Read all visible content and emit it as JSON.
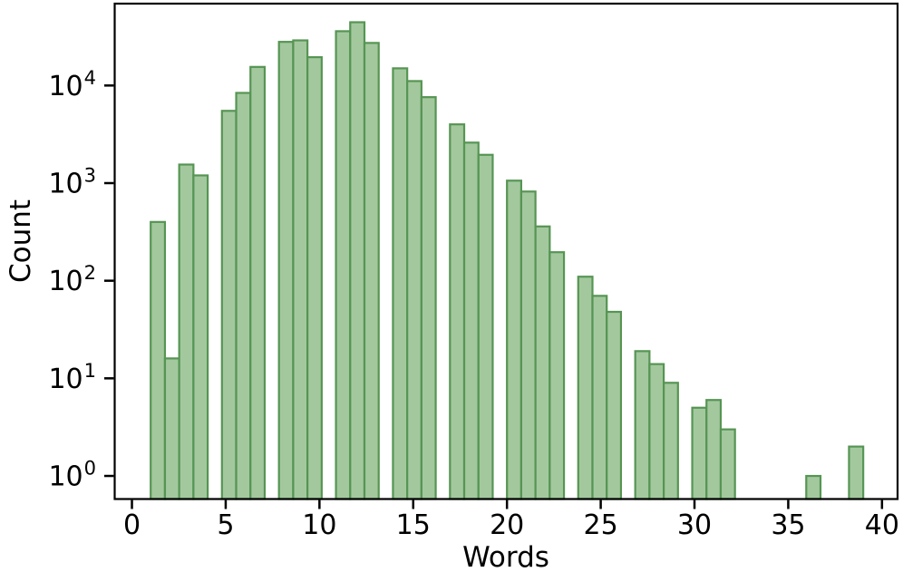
{
  "figure": {
    "background": "#ffffff"
  },
  "chart_data": {
    "type": "bar",
    "subtype": "histogram",
    "title": "",
    "xlabel": "Words",
    "ylabel": "Count",
    "x_ticks": [
      0,
      5,
      10,
      15,
      20,
      25,
      30,
      35,
      40
    ],
    "y_tick_base": "10",
    "y_tick_exponents": [
      0,
      1,
      2,
      3,
      4
    ],
    "y_scale": "log",
    "xlim": [
      -0.92,
      40.83
    ],
    "ylim": [
      0.58,
      69000
    ],
    "grid": false,
    "legend": null,
    "bin_start": 1.0,
    "bin_width": 0.76,
    "bin_counts": [
      400,
      16,
      1550,
      1200,
      0,
      5500,
      8400,
      15500,
      0,
      28000,
      29000,
      19500,
      0,
      36000,
      44500,
      27300,
      0,
      15000,
      11100,
      7600,
      0,
      4000,
      2600,
      1950,
      0,
      1060,
      820,
      360,
      196,
      0,
      110,
      70,
      48,
      0,
      19,
      14,
      9,
      0,
      5,
      6,
      3,
      0,
      0,
      0,
      0,
      0,
      1,
      0,
      0,
      2
    ],
    "colors": {
      "bar_fill": "#a3c89e",
      "bar_edge": "#569553",
      "axis": "#000000",
      "text": "#000000"
    }
  }
}
